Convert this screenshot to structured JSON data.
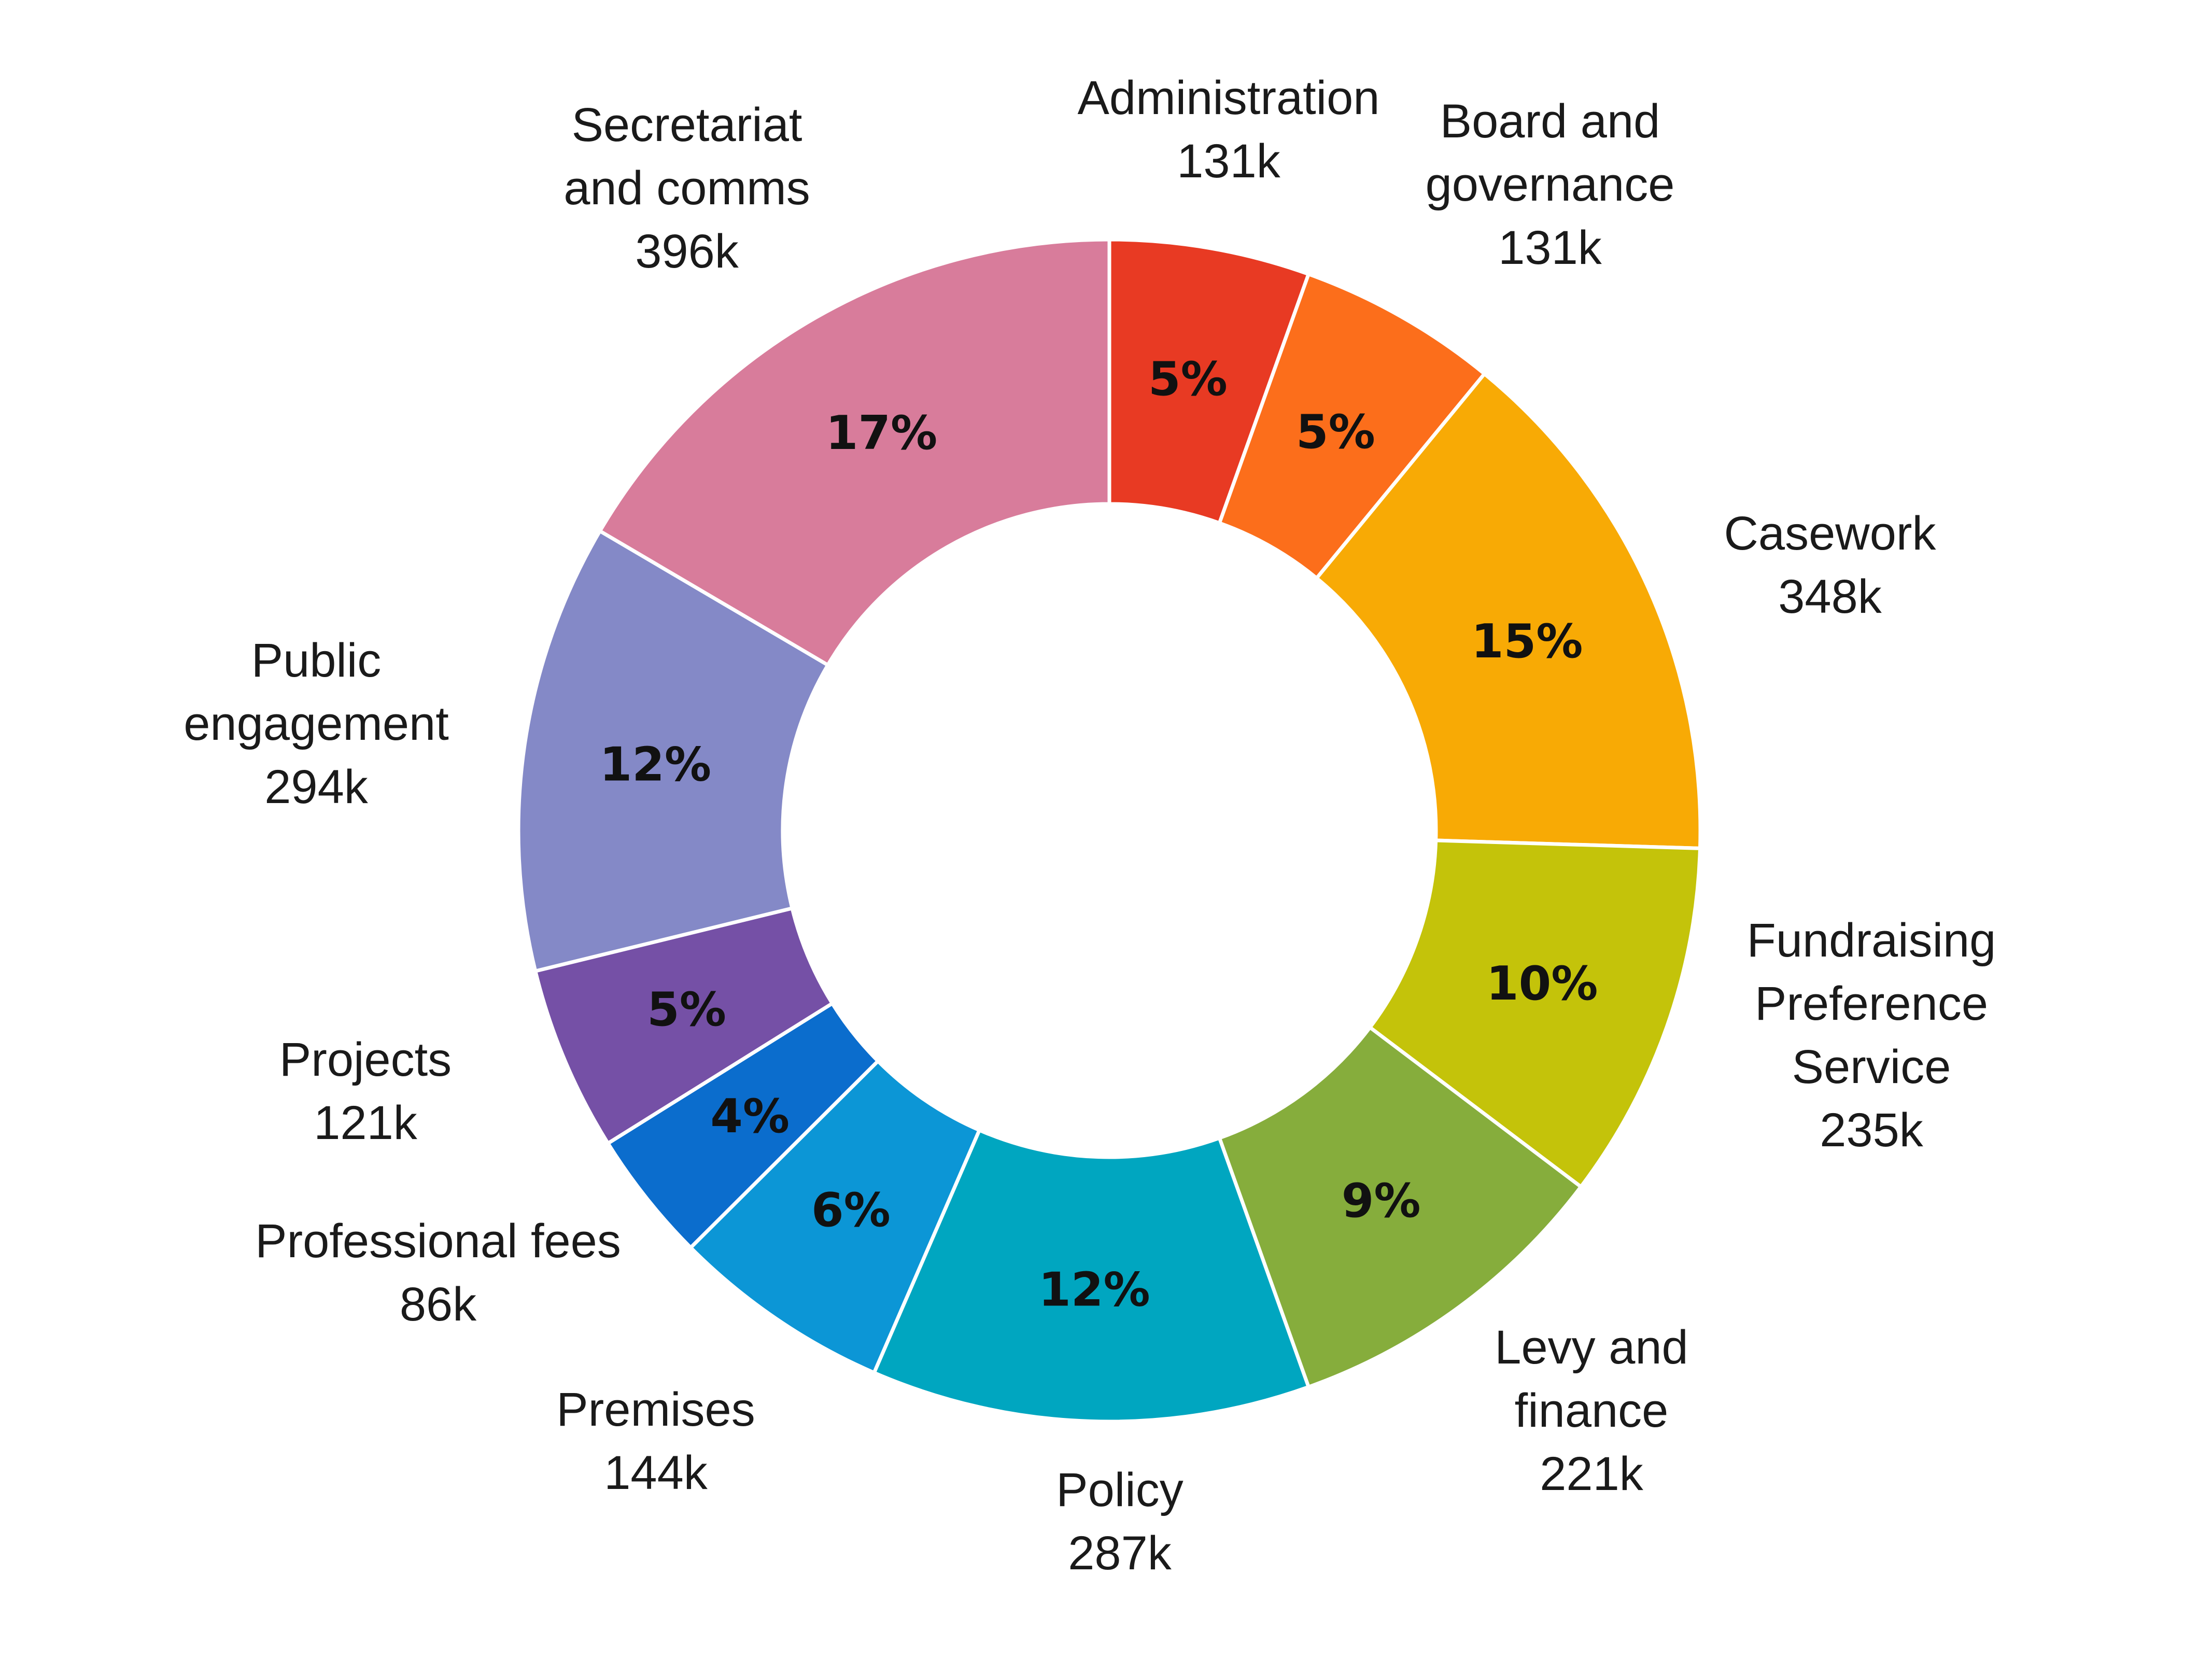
{
  "chart_data": {
    "type": "pie",
    "donut": true,
    "legend": "none",
    "slices": [
      {
        "label": "Administration",
        "value": 131,
        "value_label": "131k",
        "percent_label": "5%",
        "color": "#e83a23"
      },
      {
        "label": "Board and governance",
        "value": 131,
        "value_label": "131k",
        "percent_label": "5%",
        "color": "#fc6e1b"
      },
      {
        "label": "Casework",
        "value": 348,
        "value_label": "348k",
        "percent_label": "15%",
        "color": "#f8aa05"
      },
      {
        "label": "Fundraising Preference Service",
        "value": 235,
        "value_label": "235k",
        "percent_label": "10%",
        "color": "#c4c30a"
      },
      {
        "label": "Levy and finance",
        "value": 221,
        "value_label": "221k",
        "percent_label": "9%",
        "color": "#86ad3c"
      },
      {
        "label": "Policy",
        "value": 287,
        "value_label": "287k",
        "percent_label": "12%",
        "color": "#00a6c0"
      },
      {
        "label": "Premises",
        "value": 144,
        "value_label": "144k",
        "percent_label": "6%",
        "color": "#0c96d6"
      },
      {
        "label": "Professional fees",
        "value": 86,
        "value_label": "86k",
        "percent_label": "4%",
        "color": "#0b6dcd"
      },
      {
        "label": "Projects",
        "value": 121,
        "value_label": "121k",
        "percent_label": "5%",
        "color": "#7550a6"
      },
      {
        "label": "Public engagement",
        "value": 294,
        "value_label": "294k",
        "percent_label": "12%",
        "color": "#8489c7"
      },
      {
        "label": "Secretariat and comms",
        "value": 396,
        "value_label": "396k",
        "percent_label": "17%",
        "color": "#d87c9b"
      }
    ]
  }
}
